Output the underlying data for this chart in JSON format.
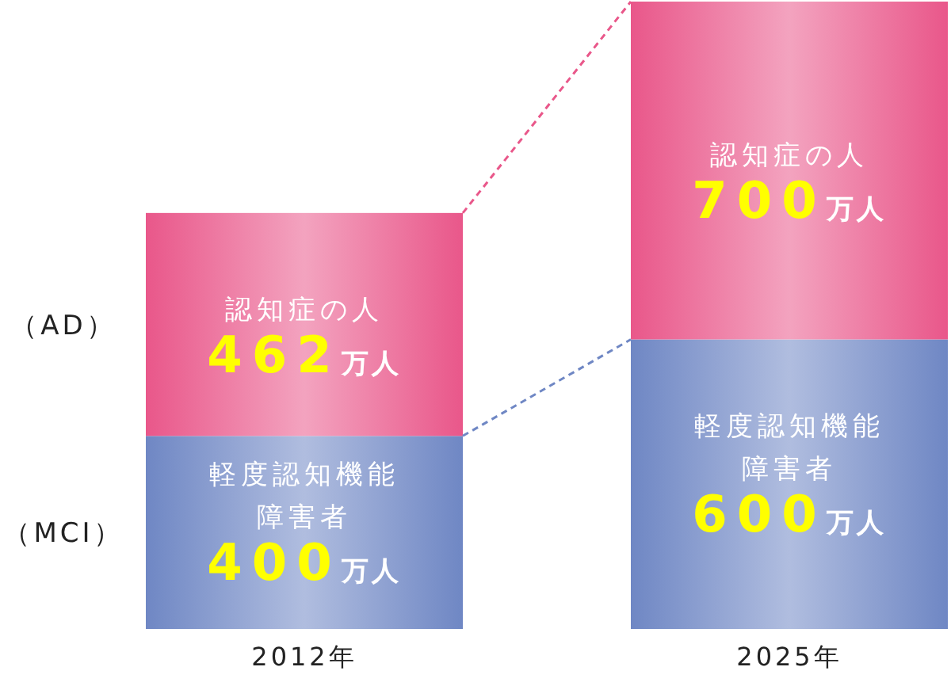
{
  "chart_data": {
    "type": "bar",
    "stacked": true,
    "categories": [
      "2012年",
      "2025年"
    ],
    "series": [
      {
        "name": "（MCI）",
        "color": "#6f87c4",
        "values": [
          400,
          600
        ],
        "value_labels": [
          "400万人",
          "600万人"
        ]
      },
      {
        "name": "（AD）",
        "color": "#e9578a",
        "values": [
          462,
          700
        ],
        "value_labels": [
          "462万人",
          "700万人"
        ]
      }
    ],
    "annotations": [
      "軽度認知機能障害者",
      "軽度認知機能障害者",
      "認知症の人",
      "認知症の人"
    ]
  }
}
